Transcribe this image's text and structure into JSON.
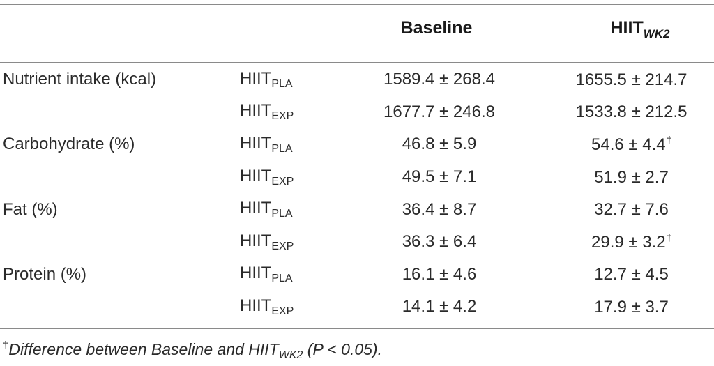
{
  "header": {
    "baseline": "Baseline",
    "hiit_main": "HIIT",
    "hiit_sub": "WK2"
  },
  "rows": [
    {
      "nutrient": "Nutrient intake (kcal)",
      "group_main": "HIIT",
      "group_sub": "PLA",
      "baseline": "1589.4 ± 268.4",
      "hiit": "1655.5 ± 214.7",
      "mark": ""
    },
    {
      "nutrient": "",
      "group_main": "HIIT",
      "group_sub": "EXP",
      "baseline": "1677.7 ± 246.8",
      "hiit": "1533.8 ± 212.5",
      "mark": ""
    },
    {
      "nutrient": "Carbohydrate (%)",
      "group_main": "HIIT",
      "group_sub": "PLA",
      "baseline": "46.8 ± 5.9",
      "hiit": "54.6 ± 4.4",
      "mark": "†"
    },
    {
      "nutrient": "",
      "group_main": "HIIT",
      "group_sub": "EXP",
      "baseline": "49.5 ± 7.1",
      "hiit": "51.9 ± 2.7",
      "mark": ""
    },
    {
      "nutrient": "Fat (%)",
      "group_main": "HIIT",
      "group_sub": "PLA",
      "baseline": "36.4 ± 8.7",
      "hiit": "32.7 ± 7.6",
      "mark": ""
    },
    {
      "nutrient": "",
      "group_main": "HIIT",
      "group_sub": "EXP",
      "baseline": "36.3 ± 6.4",
      "hiit": "29.9 ± 3.2",
      "mark": "†"
    },
    {
      "nutrient": "Protein (%)",
      "group_main": "HIIT",
      "group_sub": "PLA",
      "baseline": "16.1 ± 4.6",
      "hiit": "12.7 ± 4.5",
      "mark": ""
    },
    {
      "nutrient": "",
      "group_main": "HIIT",
      "group_sub": "EXP",
      "baseline": "14.1 ± 4.2",
      "hiit": "17.9 ± 3.7",
      "mark": ""
    }
  ],
  "footnote": {
    "mark": "†",
    "text_before": "Difference between Baseline and HIIT",
    "sub": "WK2",
    "text_after": " (P < 0.05)."
  }
}
